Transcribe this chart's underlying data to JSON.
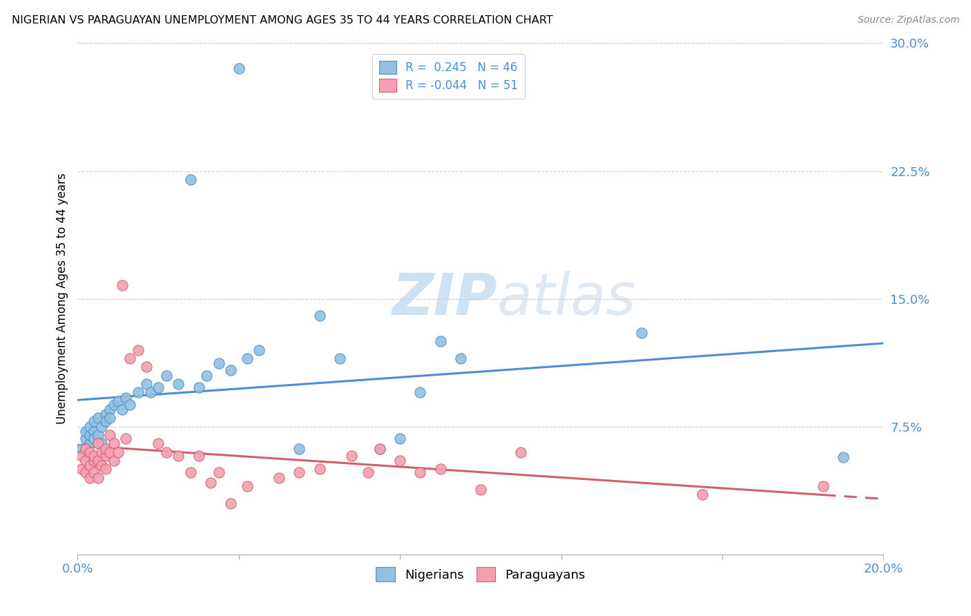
{
  "title": "NIGERIAN VS PARAGUAYAN UNEMPLOYMENT AMONG AGES 35 TO 44 YEARS CORRELATION CHART",
  "source": "Source: ZipAtlas.com",
  "ylabel": "Unemployment Among Ages 35 to 44 years",
  "xlim": [
    0.0,
    0.2
  ],
  "ylim": [
    0.0,
    0.3
  ],
  "xticks": [
    0.0,
    0.04,
    0.08,
    0.12,
    0.16,
    0.2
  ],
  "yticks_right": [
    0.075,
    0.15,
    0.225,
    0.3
  ],
  "ytick_labels_right": [
    "7.5%",
    "15.0%",
    "22.5%",
    "30.0%"
  ],
  "legend_r_n_label": "R =  0.245   N = 46",
  "legend_r_p_label": "R = -0.044   N = 51",
  "nigerians_color": "#92c0e0",
  "paraguayans_color": "#f4a0b0",
  "trend_nigerian_color": "#4a8fd4",
  "trend_paraguayan_color": "#d06070",
  "watermark_zip": "ZIP",
  "watermark_atlas": "atlas",
  "nigerian_x": [
    0.001,
    0.002,
    0.002,
    0.003,
    0.003,
    0.003,
    0.004,
    0.004,
    0.004,
    0.005,
    0.005,
    0.006,
    0.006,
    0.007,
    0.007,
    0.008,
    0.008,
    0.009,
    0.01,
    0.011,
    0.012,
    0.013,
    0.015,
    0.017,
    0.018,
    0.02,
    0.022,
    0.025,
    0.028,
    0.03,
    0.032,
    0.035,
    0.038,
    0.04,
    0.042,
    0.045,
    0.055,
    0.06,
    0.065,
    0.075,
    0.08,
    0.085,
    0.09,
    0.095,
    0.14,
    0.19
  ],
  "nigerian_y": [
    0.062,
    0.068,
    0.072,
    0.065,
    0.07,
    0.075,
    0.072,
    0.068,
    0.078,
    0.07,
    0.08,
    0.065,
    0.075,
    0.082,
    0.078,
    0.085,
    0.08,
    0.088,
    0.09,
    0.085,
    0.092,
    0.088,
    0.095,
    0.1,
    0.095,
    0.098,
    0.105,
    0.1,
    0.22,
    0.098,
    0.105,
    0.112,
    0.108,
    0.285,
    0.115,
    0.12,
    0.062,
    0.14,
    0.115,
    0.062,
    0.068,
    0.095,
    0.125,
    0.115,
    0.13,
    0.057
  ],
  "paraguayan_x": [
    0.001,
    0.001,
    0.002,
    0.002,
    0.002,
    0.003,
    0.003,
    0.003,
    0.004,
    0.004,
    0.004,
    0.005,
    0.005,
    0.005,
    0.006,
    0.006,
    0.007,
    0.007,
    0.007,
    0.008,
    0.008,
    0.009,
    0.009,
    0.01,
    0.011,
    0.012,
    0.013,
    0.015,
    0.017,
    0.02,
    0.022,
    0.025,
    0.028,
    0.03,
    0.033,
    0.035,
    0.038,
    0.042,
    0.05,
    0.055,
    0.06,
    0.068,
    0.072,
    0.075,
    0.08,
    0.085,
    0.09,
    0.1,
    0.11,
    0.155,
    0.185
  ],
  "paraguayan_y": [
    0.058,
    0.05,
    0.055,
    0.048,
    0.062,
    0.052,
    0.06,
    0.045,
    0.055,
    0.058,
    0.048,
    0.055,
    0.065,
    0.045,
    0.06,
    0.052,
    0.058,
    0.062,
    0.05,
    0.06,
    0.07,
    0.055,
    0.065,
    0.06,
    0.158,
    0.068,
    0.115,
    0.12,
    0.11,
    0.065,
    0.06,
    0.058,
    0.048,
    0.058,
    0.042,
    0.048,
    0.03,
    0.04,
    0.045,
    0.048,
    0.05,
    0.058,
    0.048,
    0.062,
    0.055,
    0.048,
    0.05,
    0.038,
    0.06,
    0.035,
    0.04
  ]
}
